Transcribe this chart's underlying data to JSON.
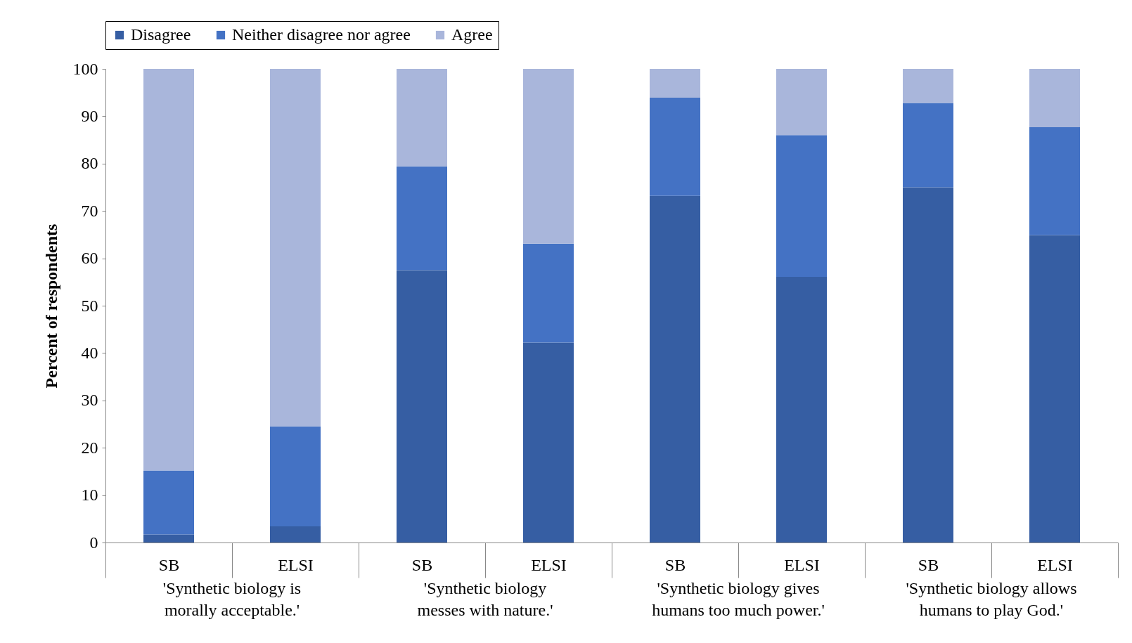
{
  "chart_data": {
    "type": "bar",
    "stacked": true,
    "ylabel": "Percent of respondents",
    "categories": [
      "SB",
      "ELSI",
      "SB",
      "ELSI",
      "SB",
      "ELSI",
      "SB",
      "ELSI"
    ],
    "series": [
      {
        "name": "Disagree",
        "color": "#365ea3",
        "values": [
          1.7,
          3.4,
          57.5,
          42.2,
          73.2,
          56.1,
          75.0,
          64.9
        ]
      },
      {
        "name": "Neither disagree nor agree",
        "color": "#4472c4",
        "values": [
          13.5,
          21.1,
          21.9,
          20.9,
          20.7,
          29.9,
          17.8,
          22.8
        ]
      },
      {
        "name": "Agree",
        "color": "#a9b6db",
        "values": [
          84.8,
          75.5,
          20.6,
          36.9,
          6.1,
          14.0,
          7.2,
          12.3
        ]
      }
    ],
    "annotations": [
      "'Synthetic biology is morally acceptable.'",
      "'Synthetic biology messes with nature.'",
      "'Synthetic biology gives humans too much power.'",
      "'Synthetic biology allows humans to play God.'"
    ],
    "ylim": [
      0,
      100
    ],
    "yticks": [
      0,
      10,
      20,
      30,
      40,
      50,
      60,
      70,
      80,
      90,
      100
    ],
    "legend": "top",
    "grid": false
  }
}
